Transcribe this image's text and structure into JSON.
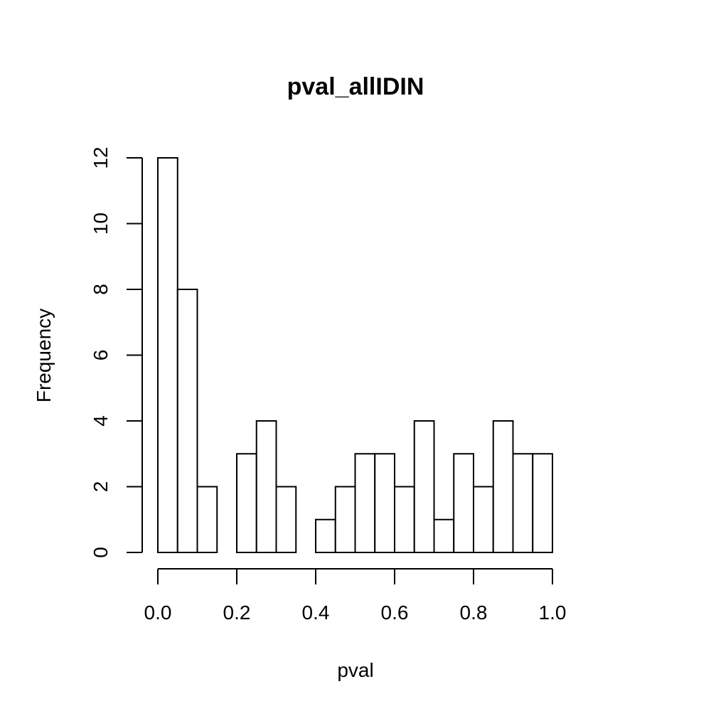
{
  "chart_data": {
    "type": "bar",
    "title": "pval_allIDIN",
    "xlabel": "pval",
    "ylabel": "Frequency",
    "bin_edges": [
      0.0,
      0.05,
      0.1,
      0.15,
      0.2,
      0.25,
      0.3,
      0.35,
      0.4,
      0.45,
      0.5,
      0.55,
      0.6,
      0.65,
      0.7,
      0.75,
      0.8,
      0.85,
      0.9,
      0.95,
      1.0
    ],
    "values": [
      12,
      8,
      2,
      0,
      3,
      4,
      2,
      0,
      1,
      2,
      3,
      3,
      2,
      4,
      1,
      3,
      2,
      4,
      3,
      3
    ],
    "xlim": [
      0.0,
      1.0
    ],
    "ylim": [
      0,
      12
    ],
    "x_ticks": [
      0.0,
      0.2,
      0.4,
      0.6,
      0.8,
      1.0
    ],
    "x_tick_labels": [
      "0.0",
      "0.2",
      "0.4",
      "0.6",
      "0.8",
      "1.0"
    ],
    "y_ticks": [
      0,
      2,
      4,
      6,
      8,
      10,
      12
    ],
    "y_tick_labels": [
      "0",
      "2",
      "4",
      "6",
      "8",
      "10",
      "12"
    ],
    "grid": false,
    "legend": "none"
  }
}
